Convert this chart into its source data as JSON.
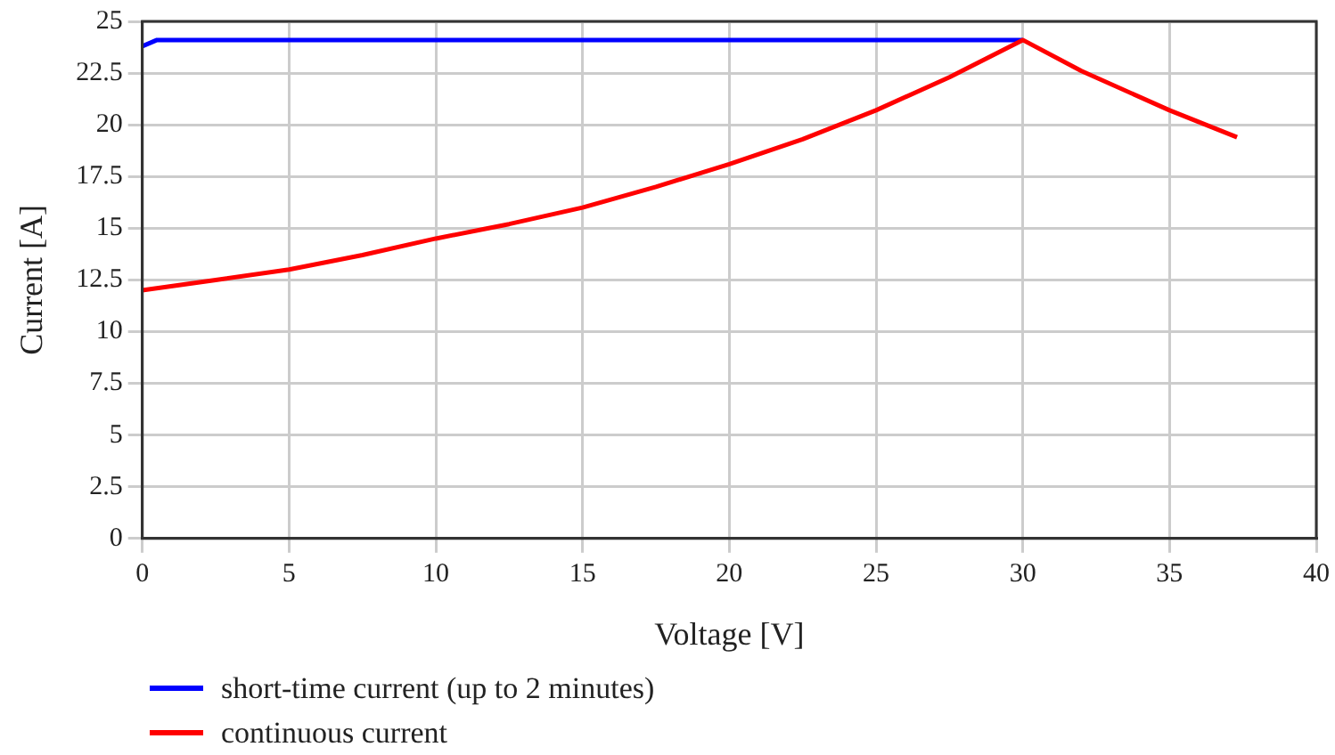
{
  "chart_data": {
    "type": "line",
    "xlabel": "Voltage [V]",
    "ylabel": "Current [A]",
    "xlim": [
      0,
      40
    ],
    "xticks": [
      0,
      5,
      10,
      15,
      20,
      25,
      30,
      35,
      40
    ],
    "ylim": [
      0,
      25
    ],
    "yticks": [
      0,
      2.5,
      5,
      7.5,
      10,
      12.5,
      15,
      17.5,
      20,
      22.5,
      25
    ],
    "grid": true,
    "legend": "bottom left",
    "marker": "none",
    "line_style": "solid",
    "series": [
      {
        "name": "short-time current (up to 2 minutes)",
        "color": "#0000ff",
        "x": [
          0,
          0.5,
          30
        ],
        "values": [
          23.8,
          24.1,
          24.1
        ]
      },
      {
        "name": "continuous current",
        "color": "#ff0000",
        "x": [
          0,
          2.5,
          5,
          7.5,
          10,
          12.5,
          15,
          17.5,
          20,
          22.5,
          25,
          27.5,
          30,
          32,
          35,
          37.3
        ],
        "values": [
          12,
          12.5,
          13,
          13.7,
          14.5,
          15.2,
          16,
          17,
          18.1,
          19.3,
          20.7,
          22.3,
          24.1,
          22.6,
          20.7,
          19.4
        ]
      }
    ]
  }
}
